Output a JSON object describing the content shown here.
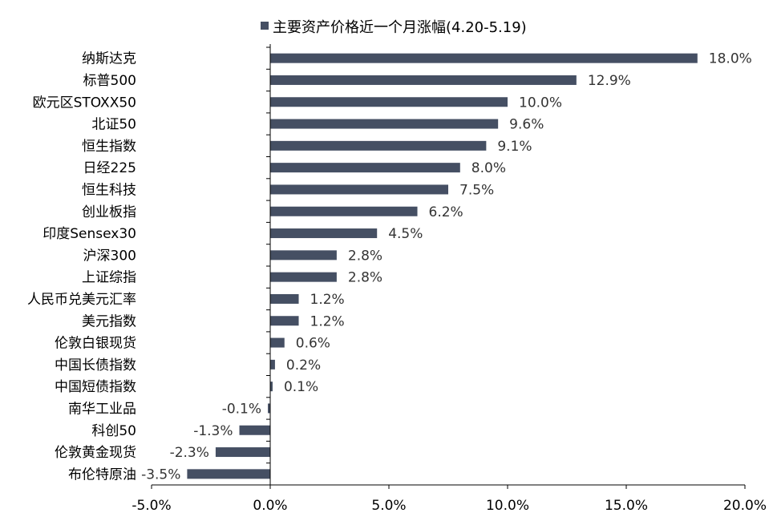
{
  "chart_data": {
    "type": "bar",
    "orientation": "horizontal",
    "legend": "主要资产价格近一个月涨幅(4.20-5.19)",
    "legend_position": "top",
    "categories": [
      "纳斯达克",
      "标普500",
      "欧元区STOXX50",
      "北证50",
      "恒生指数",
      "日经225",
      "恒生科技",
      "创业板指",
      "印度Sensex30",
      "沪深300",
      "上证综指",
      "人民币兑美元汇率",
      "美元指数",
      "伦敦白银现货",
      "中国长债指数",
      "中国短债指数",
      "南华工业品",
      "科创50",
      "伦敦黄金现货",
      "布伦特原油"
    ],
    "values": [
      18.0,
      12.9,
      10.0,
      9.6,
      9.1,
      8.0,
      7.5,
      6.2,
      4.5,
      2.8,
      2.8,
      1.2,
      1.2,
      0.6,
      0.2,
      0.1,
      -0.1,
      -1.3,
      -2.3,
      -3.5
    ],
    "value_labels": [
      "18.0%",
      "12.9%",
      "10.0%",
      "9.6%",
      "9.1%",
      "8.0%",
      "7.5%",
      "6.2%",
      "4.5%",
      "2.8%",
      "2.8%",
      "1.2%",
      "1.2%",
      "0.6%",
      "0.2%",
      "0.1%",
      "-0.1%",
      "-1.3%",
      "-2.3%",
      "-3.5%"
    ],
    "xlim": [
      -5.0,
      20.0
    ],
    "xticks": [
      -5.0,
      0.0,
      5.0,
      10.0,
      15.0,
      20.0
    ],
    "xtick_labels": [
      "-5.0%",
      "0.0%",
      "5.0%",
      "10.0%",
      "15.0%",
      "20.0%"
    ],
    "grid": false,
    "bar_color": "#454F63",
    "axis_color": "#000000"
  }
}
